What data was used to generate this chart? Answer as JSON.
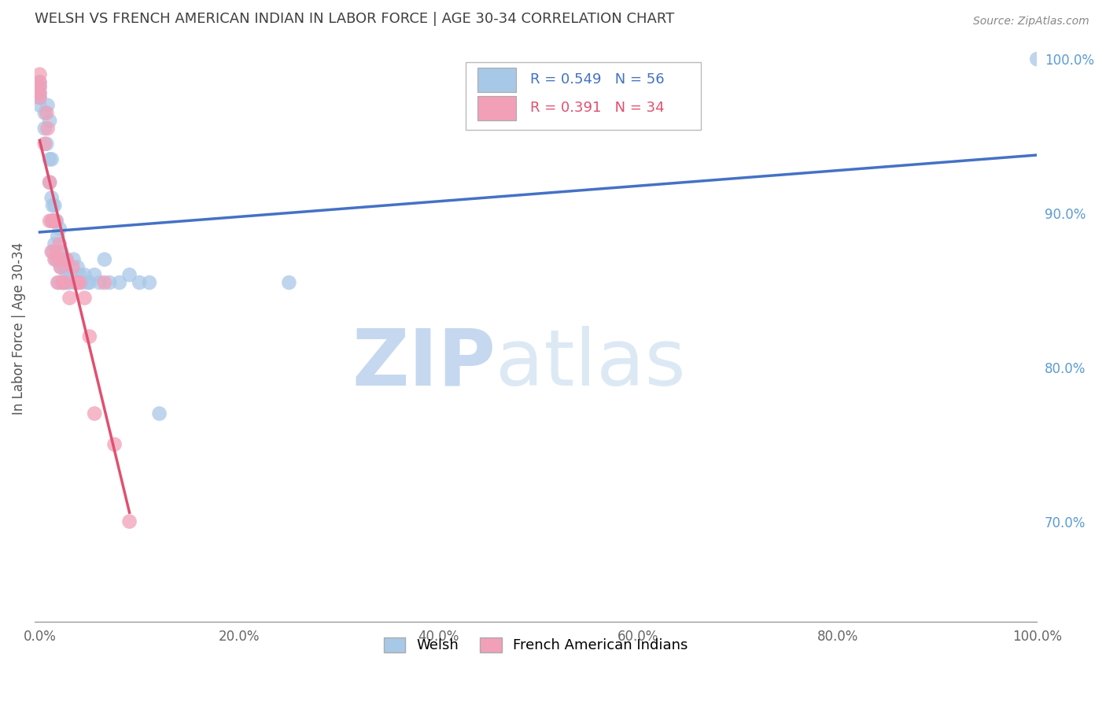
{
  "title": "WELSH VS FRENCH AMERICAN INDIAN IN LABOR FORCE | AGE 30-34 CORRELATION CHART",
  "source": "Source: ZipAtlas.com",
  "ylabel": "In Labor Force | Age 30-34",
  "watermark_zip": "ZIP",
  "watermark_atlas": "atlas",
  "legend_blue_R": "R = 0.549",
  "legend_blue_N": "N = 56",
  "legend_pink_R": "R = 0.391",
  "legend_pink_N": "N = 34",
  "legend_blue_label": "Welsh",
  "legend_pink_label": "French American Indians",
  "xlim": [
    -0.005,
    1.0
  ],
  "ylim": [
    0.635,
    1.015
  ],
  "xticklabels": [
    "0.0%",
    "20.0%",
    "40.0%",
    "60.0%",
    "80.0%",
    "100.0%"
  ],
  "xticks": [
    0,
    0.2,
    0.4,
    0.6,
    0.8,
    1.0
  ],
  "yticks_right": [
    0.7,
    0.8,
    0.9,
    1.0
  ],
  "ytick_right_labels": [
    "70.0%",
    "80.0%",
    "90.0%",
    "100.0%"
  ],
  "blue_color": "#a8c8e8",
  "pink_color": "#f2a0b8",
  "blue_line_color": "#4472c4",
  "pink_line_color": "#e05070",
  "grid_color": "#d0d0d0",
  "title_color": "#404040",
  "right_axis_color": "#5b9bd5",
  "bottom_axis_color": "#888888",
  "blue_x": [
    0.0,
    0.0,
    0.0,
    0.0,
    0.0,
    0.005,
    0.005,
    0.007,
    0.008,
    0.01,
    0.01,
    0.01,
    0.012,
    0.012,
    0.012,
    0.013,
    0.013,
    0.014,
    0.015,
    0.015,
    0.016,
    0.017,
    0.018,
    0.018,
    0.019,
    0.02,
    0.02,
    0.021,
    0.022,
    0.023,
    0.024,
    0.025,
    0.026,
    0.027,
    0.028,
    0.03,
    0.032,
    0.034,
    0.036,
    0.038,
    0.04,
    0.042,
    0.045,
    0.048,
    0.05,
    0.055,
    0.06,
    0.065,
    0.07,
    0.08,
    0.09,
    0.1,
    0.11,
    0.12,
    0.25,
    1.0
  ],
  "blue_y": [
    0.97,
    0.975,
    0.978,
    0.982,
    0.985,
    0.955,
    0.965,
    0.945,
    0.97,
    0.92,
    0.935,
    0.96,
    0.895,
    0.91,
    0.935,
    0.875,
    0.905,
    0.895,
    0.88,
    0.905,
    0.87,
    0.895,
    0.87,
    0.885,
    0.855,
    0.87,
    0.89,
    0.865,
    0.875,
    0.855,
    0.865,
    0.855,
    0.87,
    0.86,
    0.855,
    0.855,
    0.86,
    0.87,
    0.855,
    0.865,
    0.86,
    0.855,
    0.86,
    0.855,
    0.855,
    0.86,
    0.855,
    0.87,
    0.855,
    0.855,
    0.86,
    0.855,
    0.855,
    0.77,
    0.855,
    1.0
  ],
  "pink_x": [
    0.0,
    0.0,
    0.0,
    0.0,
    0.0,
    0.005,
    0.007,
    0.008,
    0.01,
    0.01,
    0.012,
    0.013,
    0.014,
    0.015,
    0.016,
    0.017,
    0.018,
    0.019,
    0.02,
    0.021,
    0.023,
    0.025,
    0.027,
    0.03,
    0.033,
    0.036,
    0.038,
    0.04,
    0.045,
    0.05,
    0.055,
    0.065,
    0.075,
    0.09
  ],
  "pink_y": [
    0.975,
    0.978,
    0.982,
    0.985,
    0.99,
    0.945,
    0.965,
    0.955,
    0.895,
    0.92,
    0.875,
    0.895,
    0.895,
    0.87,
    0.895,
    0.875,
    0.855,
    0.87,
    0.88,
    0.865,
    0.855,
    0.855,
    0.87,
    0.845,
    0.865,
    0.855,
    0.855,
    0.855,
    0.845,
    0.82,
    0.77,
    0.855,
    0.75,
    0.7
  ]
}
